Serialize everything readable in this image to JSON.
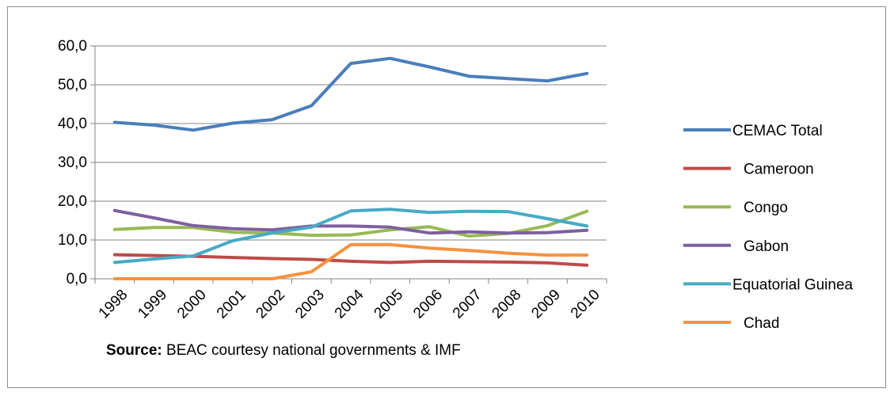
{
  "chart_data": {
    "type": "line",
    "title": "",
    "xlabel": "",
    "ylabel": "",
    "categories": [
      "1998",
      "1999",
      "2000",
      "2001",
      "2002",
      "2003",
      "2004",
      "2005",
      "2006",
      "2007",
      "2008",
      "2009",
      "2010"
    ],
    "ylim": [
      0,
      60
    ],
    "yticks": [
      "0,0",
      "10,0",
      "20,0",
      "30,0",
      "40,0",
      "50,0",
      "60,0"
    ],
    "grid": true,
    "legend_position": "right",
    "series": [
      {
        "name": "CEMAC Total",
        "color": "#4a7ebb",
        "values": [
          40.3,
          39.6,
          38.3,
          40.1,
          41.0,
          44.6,
          55.5,
          56.8,
          54.6,
          52.2,
          51.6,
          51.0,
          52.9
        ]
      },
      {
        "name": "Cameroon",
        "color": "#be4b48",
        "values": [
          6.2,
          6.0,
          5.8,
          5.5,
          5.2,
          5.0,
          4.5,
          4.2,
          4.5,
          4.4,
          4.3,
          4.1,
          3.5
        ]
      },
      {
        "name": "Congo",
        "color": "#98b954",
        "values": [
          12.7,
          13.2,
          13.2,
          12.0,
          11.8,
          11.2,
          11.3,
          12.6,
          13.4,
          11.0,
          11.7,
          13.7,
          17.4
        ]
      },
      {
        "name": "Gabon",
        "color": "#7d60a0",
        "values": [
          17.6,
          15.7,
          13.7,
          12.9,
          12.6,
          13.6,
          13.6,
          13.3,
          11.8,
          12.1,
          11.8,
          11.9,
          12.5
        ]
      },
      {
        "name": "Equatorial Guinea",
        "color": "#46aac5",
        "values": [
          4.2,
          5.1,
          5.9,
          9.8,
          11.8,
          13.3,
          17.5,
          17.9,
          17.1,
          17.4,
          17.3,
          15.5,
          13.6
        ]
      },
      {
        "name": "Chad",
        "color": "#f69240",
        "values": [
          0.0,
          0.0,
          0.0,
          0.0,
          0.0,
          1.8,
          8.8,
          8.8,
          7.9,
          7.3,
          6.6,
          6.1,
          6.1
        ]
      }
    ]
  },
  "source": {
    "label": "Source:",
    "text": " BEAC courtesy national governments & IMF"
  }
}
